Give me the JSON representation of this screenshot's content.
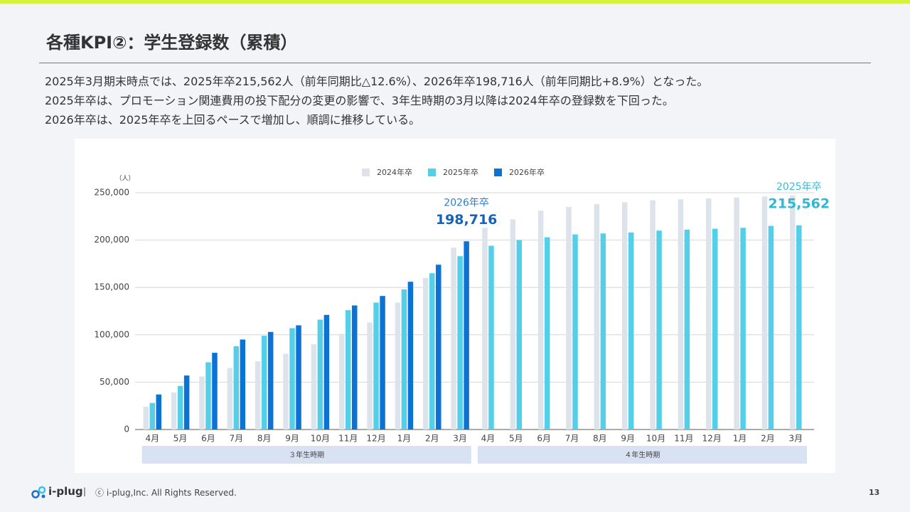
{
  "title": "各種KPI②：学生登録数（累積）",
  "body": [
    "2025年3月期末時点では、2025年卒215,562人（前年同期比△12.6%）、2026年卒198,716人（前年同期比+8.9%）となった。",
    "2025年卒は、プロモーション関連費用の投下配分の変更の影響で、3年生時期の3月以降は2024年卒の登録数を下回った。",
    "2026年卒は、2025年卒を上回るペースで増加し、順調に推移している。"
  ],
  "footer": {
    "logo": "i-plug",
    "separator": "|",
    "copyright": "ⓒ i-plug,Inc. All Rights Reserved.",
    "page": "13"
  },
  "chart_data": {
    "type": "bar",
    "y_label": "（人）",
    "categories": [
      "4月",
      "5月",
      "6月",
      "7月",
      "8月",
      "9月",
      "10月",
      "11月",
      "12月",
      "1月",
      "2月",
      "3月",
      "4月",
      "5月",
      "6月",
      "7月",
      "8月",
      "9月",
      "10月",
      "11月",
      "12月",
      "1月",
      "2月",
      "3月"
    ],
    "groups": [
      "３年生時期",
      "４年生時期"
    ],
    "series": [
      {
        "name": "2024年卒",
        "color": "#dde3ea",
        "values": [
          24000,
          39000,
          56000,
          65000,
          72000,
          80000,
          90000,
          101000,
          113000,
          134000,
          160000,
          192000,
          213000,
          222000,
          231000,
          235000,
          238000,
          240000,
          242000,
          243000,
          244000,
          245000,
          246000,
          247000
        ]
      },
      {
        "name": "2025年卒",
        "color": "#55cfe9",
        "values": [
          28000,
          46000,
          71000,
          88000,
          99000,
          107000,
          116000,
          126000,
          134000,
          148000,
          165000,
          183000,
          194000,
          200000,
          203000,
          206000,
          207000,
          208000,
          210000,
          211000,
          212000,
          213000,
          215000,
          215562
        ]
      },
      {
        "name": "2026年卒",
        "color": "#0b73d6",
        "values": [
          37000,
          57000,
          81000,
          95000,
          103000,
          110000,
          121000,
          131000,
          141000,
          156000,
          174000,
          198716,
          null,
          null,
          null,
          null,
          null,
          null,
          null,
          null,
          null,
          null,
          null,
          null
        ]
      }
    ],
    "annotations": [
      {
        "series": "2026年卒",
        "label": "198,716"
      },
      {
        "series": "2025年卒",
        "label": "215,562"
      }
    ],
    "ylim": [
      0,
      250000
    ],
    "yticks": [
      0,
      {
        "value": 50000,
        "label": "50,000"
      },
      {
        "value": 100000,
        "label": "100,000"
      },
      {
        "value": 150000,
        "label": "150,000"
      },
      {
        "value": 200000,
        "label": "200,000"
      },
      {
        "value": 250000,
        "label": "250,000"
      }
    ],
    "grid": true,
    "legend": "top"
  }
}
